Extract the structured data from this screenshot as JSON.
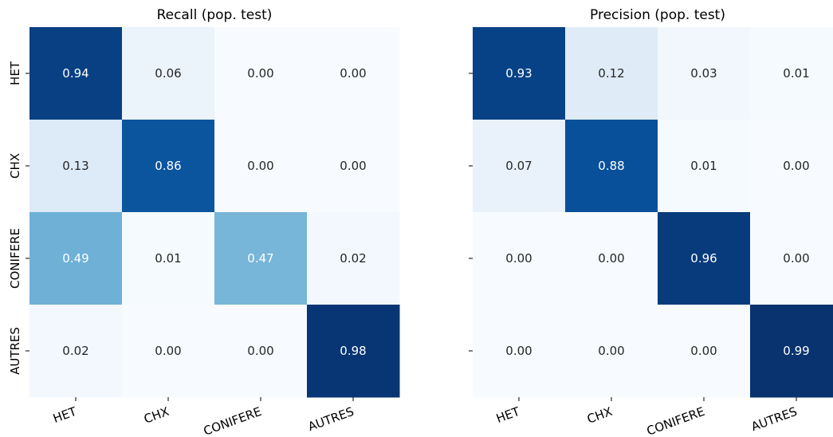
{
  "chart_data": [
    {
      "type": "heatmap",
      "title": "Recall (pop. test)",
      "row_labels": [
        "HET",
        "CHX",
        "CONIFERE",
        "AUTRES"
      ],
      "col_labels": [
        "HET",
        "CHX",
        "CONIFERE",
        "AUTRES"
      ],
      "values": [
        [
          0.94,
          0.06,
          0.0,
          0.0
        ],
        [
          0.13,
          0.86,
          0.0,
          0.0
        ],
        [
          0.49,
          0.01,
          0.47,
          0.02
        ],
        [
          0.02,
          0.0,
          0.0,
          0.98
        ]
      ],
      "value_format": "0.00",
      "colormap": "Blues",
      "vrange": [
        0,
        1
      ],
      "colorbar": false
    },
    {
      "type": "heatmap",
      "title": "Precision (pop. test)",
      "row_labels": [
        "HET",
        "CHX",
        "CONIFERE",
        "AUTRES"
      ],
      "col_labels": [
        "HET",
        "CHX",
        "CONIFERE",
        "AUTRES"
      ],
      "values": [
        [
          0.93,
          0.12,
          0.03,
          0.01
        ],
        [
          0.07,
          0.88,
          0.01,
          0.0
        ],
        [
          0.0,
          0.0,
          0.96,
          0.0
        ],
        [
          0.0,
          0.0,
          0.0,
          0.99
        ]
      ],
      "value_format": "0.00",
      "colormap": "Blues",
      "vrange": [
        0,
        1
      ],
      "colorbar": false
    }
  ]
}
